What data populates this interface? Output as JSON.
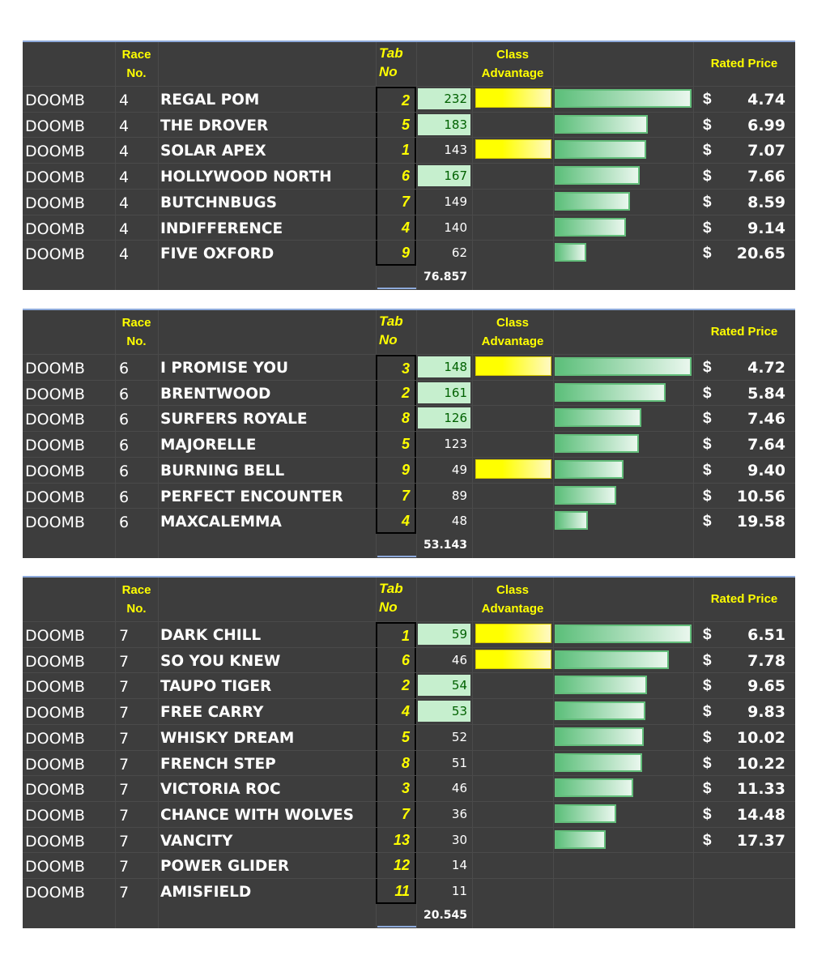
{
  "headers": {
    "race_no": [
      "Race",
      "No."
    ],
    "tab_no": [
      "Tab",
      "No"
    ],
    "class_adv": [
      "Class",
      "Advantage"
    ],
    "rated_price": "Rated Price",
    "currency": "$"
  },
  "colors": {
    "background": "#3d3d3d",
    "header_text": "#ffff00",
    "highlight_fill": "#c6efce",
    "highlight_text": "#006100",
    "class_bar": "#ffff00",
    "price_bar": "#63be7b"
  },
  "races": [
    {
      "total": "76.857",
      "runners": [
        {
          "track": "DOOMB",
          "race": "4",
          "horse": "REGAL POM",
          "tab": "2",
          "rating": "232",
          "hl": true,
          "class_adv": true,
          "bar": 1.0,
          "price": "4.74"
        },
        {
          "track": "DOOMB",
          "race": "4",
          "horse": "THE DROVER",
          "tab": "5",
          "rating": "183",
          "hl": true,
          "class_adv": false,
          "bar": 0.678,
          "price": "6.99"
        },
        {
          "track": "DOOMB",
          "race": "4",
          "horse": "SOLAR APEX",
          "tab": "1",
          "rating": "143",
          "hl": false,
          "class_adv": true,
          "bar": 0.67,
          "price": "7.07"
        },
        {
          "track": "DOOMB",
          "race": "4",
          "horse": "HOLLYWOOD NORTH",
          "tab": "6",
          "rating": "167",
          "hl": true,
          "class_adv": false,
          "bar": 0.619,
          "price": "7.66"
        },
        {
          "track": "DOOMB",
          "race": "4",
          "horse": "BUTCHNBUGS",
          "tab": "7",
          "rating": "149",
          "hl": false,
          "class_adv": false,
          "bar": 0.552,
          "price": "8.59"
        },
        {
          "track": "DOOMB",
          "race": "4",
          "horse": "INDIFFERENCE",
          "tab": "4",
          "rating": "140",
          "hl": false,
          "class_adv": false,
          "bar": 0.519,
          "price": "9.14"
        },
        {
          "track": "DOOMB",
          "race": "4",
          "horse": "FIVE OXFORD",
          "tab": "9",
          "rating": "62",
          "hl": false,
          "class_adv": false,
          "bar": 0.23,
          "price": "20.65"
        }
      ]
    },
    {
      "total": "53.143",
      "runners": [
        {
          "track": "DOOMB",
          "race": "6",
          "horse": "I PROMISE YOU",
          "tab": "3",
          "rating": "148",
          "hl": true,
          "class_adv": true,
          "bar": 1.0,
          "price": "4.72"
        },
        {
          "track": "DOOMB",
          "race": "6",
          "horse": "BRENTWOOD",
          "tab": "2",
          "rating": "161",
          "hl": true,
          "class_adv": false,
          "bar": 0.808,
          "price": "5.84"
        },
        {
          "track": "DOOMB",
          "race": "6",
          "horse": "SURFERS ROYALE",
          "tab": "8",
          "rating": "126",
          "hl": true,
          "class_adv": false,
          "bar": 0.633,
          "price": "7.46"
        },
        {
          "track": "DOOMB",
          "race": "6",
          "horse": "MAJORELLE",
          "tab": "5",
          "rating": "123",
          "hl": false,
          "class_adv": false,
          "bar": 0.618,
          "price": "7.64"
        },
        {
          "track": "DOOMB",
          "race": "6",
          "horse": "BURNING BELL",
          "tab": "9",
          "rating": "49",
          "hl": false,
          "class_adv": true,
          "bar": 0.502,
          "price": "9.40"
        },
        {
          "track": "DOOMB",
          "race": "6",
          "horse": "PERFECT ENCOUNTER",
          "tab": "7",
          "rating": "89",
          "hl": false,
          "class_adv": false,
          "bar": 0.447,
          "price": "10.56"
        },
        {
          "track": "DOOMB",
          "race": "6",
          "horse": "MAXCALEMMA",
          "tab": "4",
          "rating": "48",
          "hl": false,
          "class_adv": false,
          "bar": 0.241,
          "price": "19.58"
        }
      ]
    },
    {
      "total": "20.545",
      "runners": [
        {
          "track": "DOOMB",
          "race": "7",
          "horse": "DARK CHILL",
          "tab": "1",
          "rating": "59",
          "hl": true,
          "class_adv": true,
          "bar": 1.0,
          "price": "6.51"
        },
        {
          "track": "DOOMB",
          "race": "7",
          "horse": "SO YOU KNEW",
          "tab": "6",
          "rating": "46",
          "hl": false,
          "class_adv": true,
          "bar": 0.837,
          "price": "7.78"
        },
        {
          "track": "DOOMB",
          "race": "7",
          "horse": "TAUPO TIGER",
          "tab": "2",
          "rating": "54",
          "hl": true,
          "class_adv": false,
          "bar": 0.675,
          "price": "9.65"
        },
        {
          "track": "DOOMB",
          "race": "7",
          "horse": "FREE CARRY",
          "tab": "4",
          "rating": "53",
          "hl": true,
          "class_adv": false,
          "bar": 0.662,
          "price": "9.83"
        },
        {
          "track": "DOOMB",
          "race": "7",
          "horse": "WHISKY DREAM",
          "tab": "5",
          "rating": "52",
          "hl": false,
          "class_adv": false,
          "bar": 0.65,
          "price": "10.02"
        },
        {
          "track": "DOOMB",
          "race": "7",
          "horse": "FRENCH STEP",
          "tab": "8",
          "rating": "51",
          "hl": false,
          "class_adv": false,
          "bar": 0.637,
          "price": "10.22"
        },
        {
          "track": "DOOMB",
          "race": "7",
          "horse": "VICTORIA ROC",
          "tab": "3",
          "rating": "46",
          "hl": false,
          "class_adv": false,
          "bar": 0.575,
          "price": "11.33"
        },
        {
          "track": "DOOMB",
          "race": "7",
          "horse": "CHANCE WITH WOLVES",
          "tab": "7",
          "rating": "36",
          "hl": false,
          "class_adv": false,
          "bar": 0.45,
          "price": "14.48"
        },
        {
          "track": "DOOMB",
          "race": "7",
          "horse": "VANCITY",
          "tab": "13",
          "rating": "30",
          "hl": false,
          "class_adv": false,
          "bar": 0.375,
          "price": "17.37"
        },
        {
          "track": "DOOMB",
          "race": "7",
          "horse": "POWER GLIDER",
          "tab": "12",
          "rating": "14",
          "hl": false,
          "class_adv": false,
          "bar": null,
          "price": ""
        },
        {
          "track": "DOOMB",
          "race": "7",
          "horse": "AMISFIELD",
          "tab": "11",
          "rating": "11",
          "hl": false,
          "class_adv": false,
          "bar": null,
          "price": ""
        }
      ]
    }
  ]
}
